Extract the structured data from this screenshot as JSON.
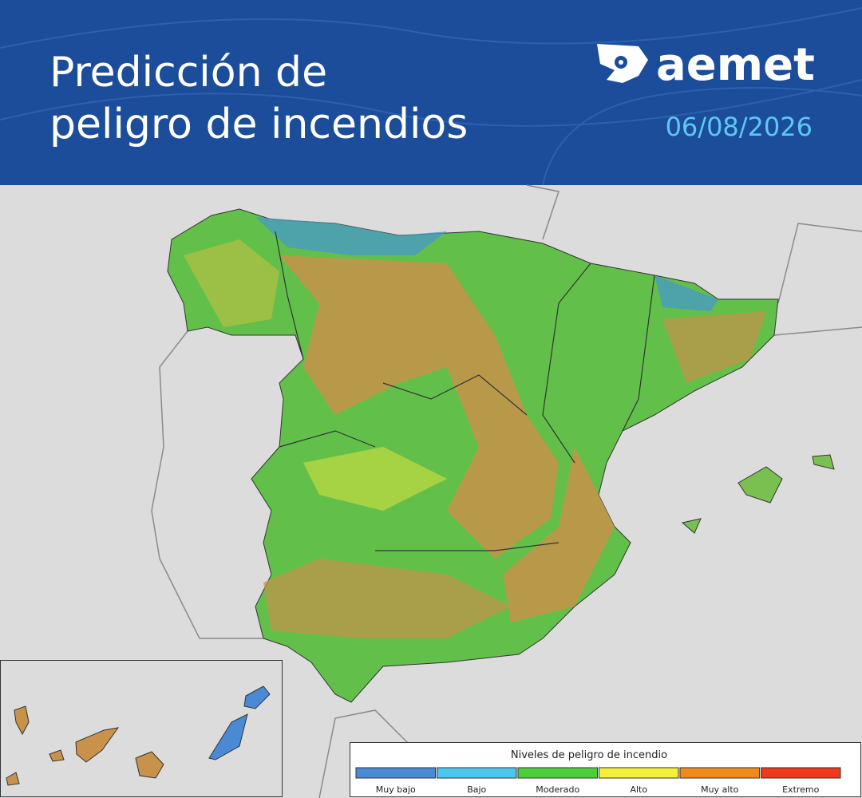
{
  "header": {
    "title_lines": [
      "Predicción de",
      "peligro de incendios"
    ],
    "logo": "aemet",
    "date": "06/08/2026"
  },
  "legend": {
    "title": "Niveles de peligro de incendio",
    "items": [
      {
        "label": "Muy bajo",
        "color": "#4a8ad4"
      },
      {
        "label": "Bajo",
        "color": "#4cc6ec"
      },
      {
        "label": "Moderado",
        "color": "#4fce3c"
      },
      {
        "label": "Alto",
        "color": "#f4ef3a"
      },
      {
        "label": "Muy alto",
        "color": "#ef8a1e"
      },
      {
        "label": "Extremo",
        "color": "#ee3a1c"
      }
    ]
  }
}
